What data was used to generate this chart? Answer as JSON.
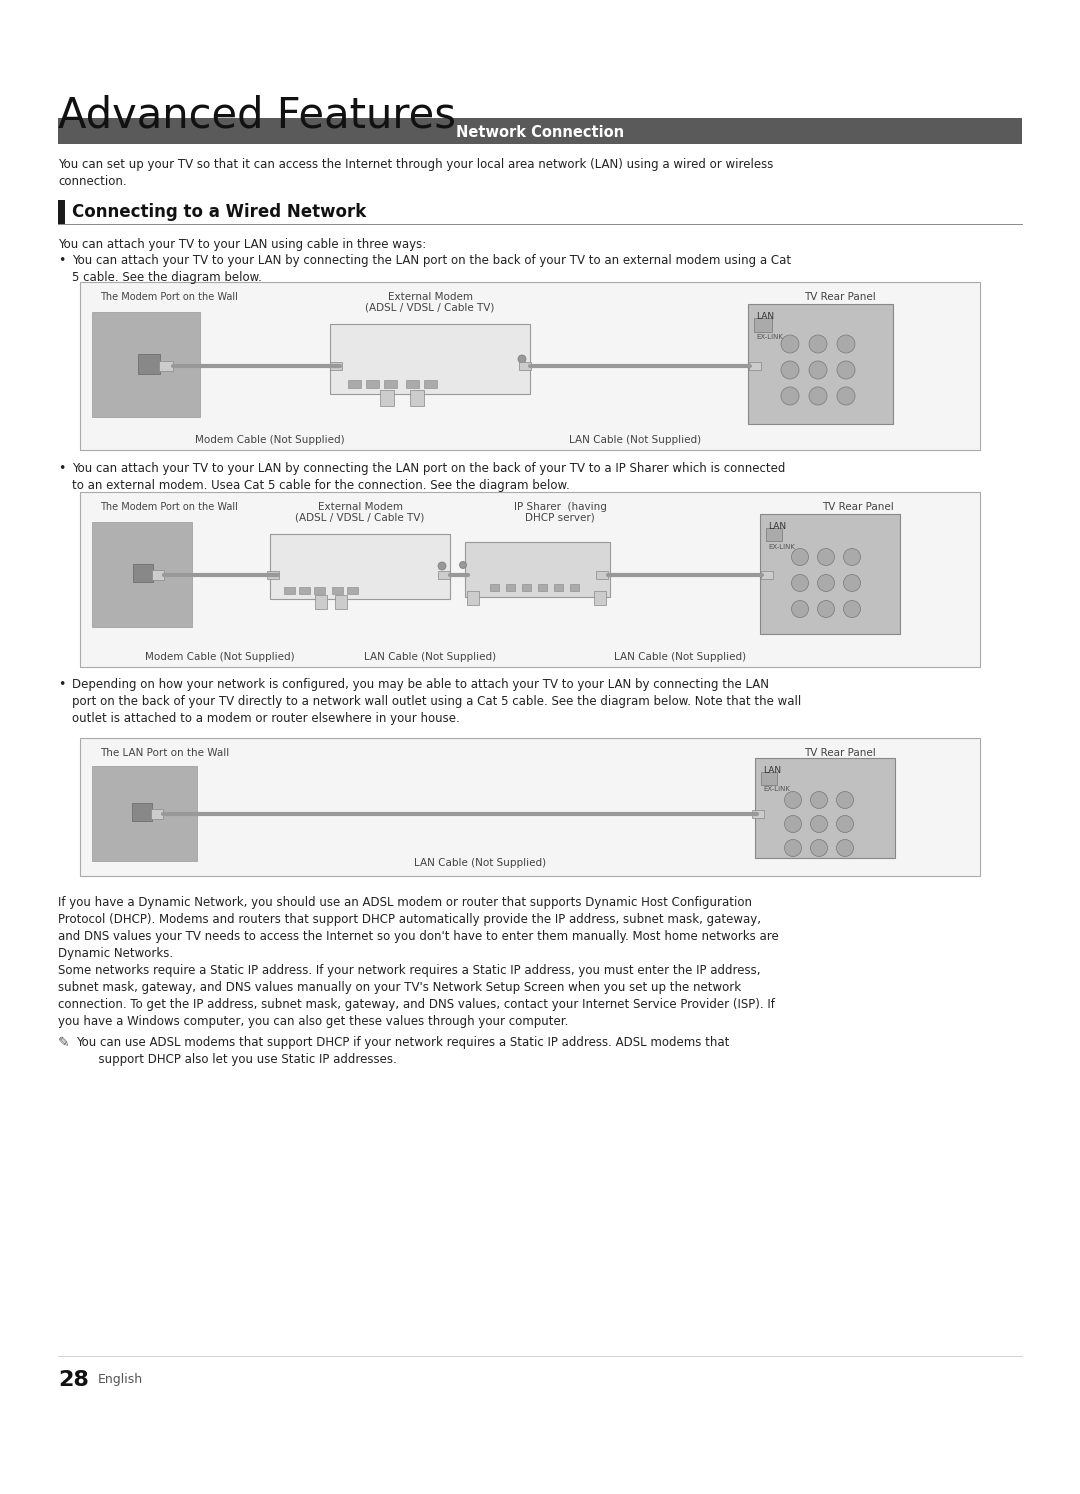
{
  "page_bg": "#ffffff",
  "title": "Advanced Features",
  "section_bar_color": "#5a5a5a",
  "section_title": "Network Connection",
  "section_title_color": "#ffffff",
  "subsection_title": "Connecting to a Wired Network",
  "intro_text": "You can set up your TV so that it can access the Internet through your local area network (LAN) using a wired or wireless\nconnection.",
  "ways_text": "You can attach your TV to your LAN using cable in three ways:",
  "bullet1_text": "You can attach your TV to your LAN by connecting the LAN port on the back of your TV to an external modem using a Cat\n5 cable. See the diagram below.",
  "bullet2_text": "You can attach your TV to your LAN by connecting the LAN port on the back of your TV to a IP Sharer which is connected\nto an external modem. Usea Cat 5 cable for the connection. See the diagram below.",
  "bullet3_text": "Depending on how your network is configured, you may be able to attach your TV to your LAN by connecting the LAN\nport on the back of your TV directly to a network wall outlet using a Cat 5 cable. See the diagram below. Note that the wall\noutlet is attached to a modem or router elsewhere in your house.",
  "footer_text1": "If you have a Dynamic Network, you should use an ADSL modem or router that supports Dynamic Host Configuration\nProtocol (DHCP). Modems and routers that support DHCP automatically provide the IP address, subnet mask, gateway,\nand DNS values your TV needs to access the Internet so you don't have to enter them manually. Most home networks are\nDynamic Networks.",
  "footer_text2": "Some networks require a Static IP address. If your network requires a Static IP address, you must enter the IP address,\nsubnet mask, gateway, and DNS values manually on your TV's Network Setup Screen when you set up the network\nconnection. To get the IP address, subnet mask, gateway, and DNS values, contact your Internet Service Provider (ISP). If\nyou have a Windows computer, you can also get these values through your computer.",
  "note_text": "You can use ADSL modems that support DHCP if your network requires a Static IP address. ADSL modems that\n      support DHCP also let you use Static IP addresses.",
  "page_number": "28",
  "page_number_label": "English",
  "diagram_border_color": "#aaaaaa",
  "diagram_bg": "#f5f5f5",
  "wall_color": "#b8b8b8",
  "cable_color": "#888888"
}
